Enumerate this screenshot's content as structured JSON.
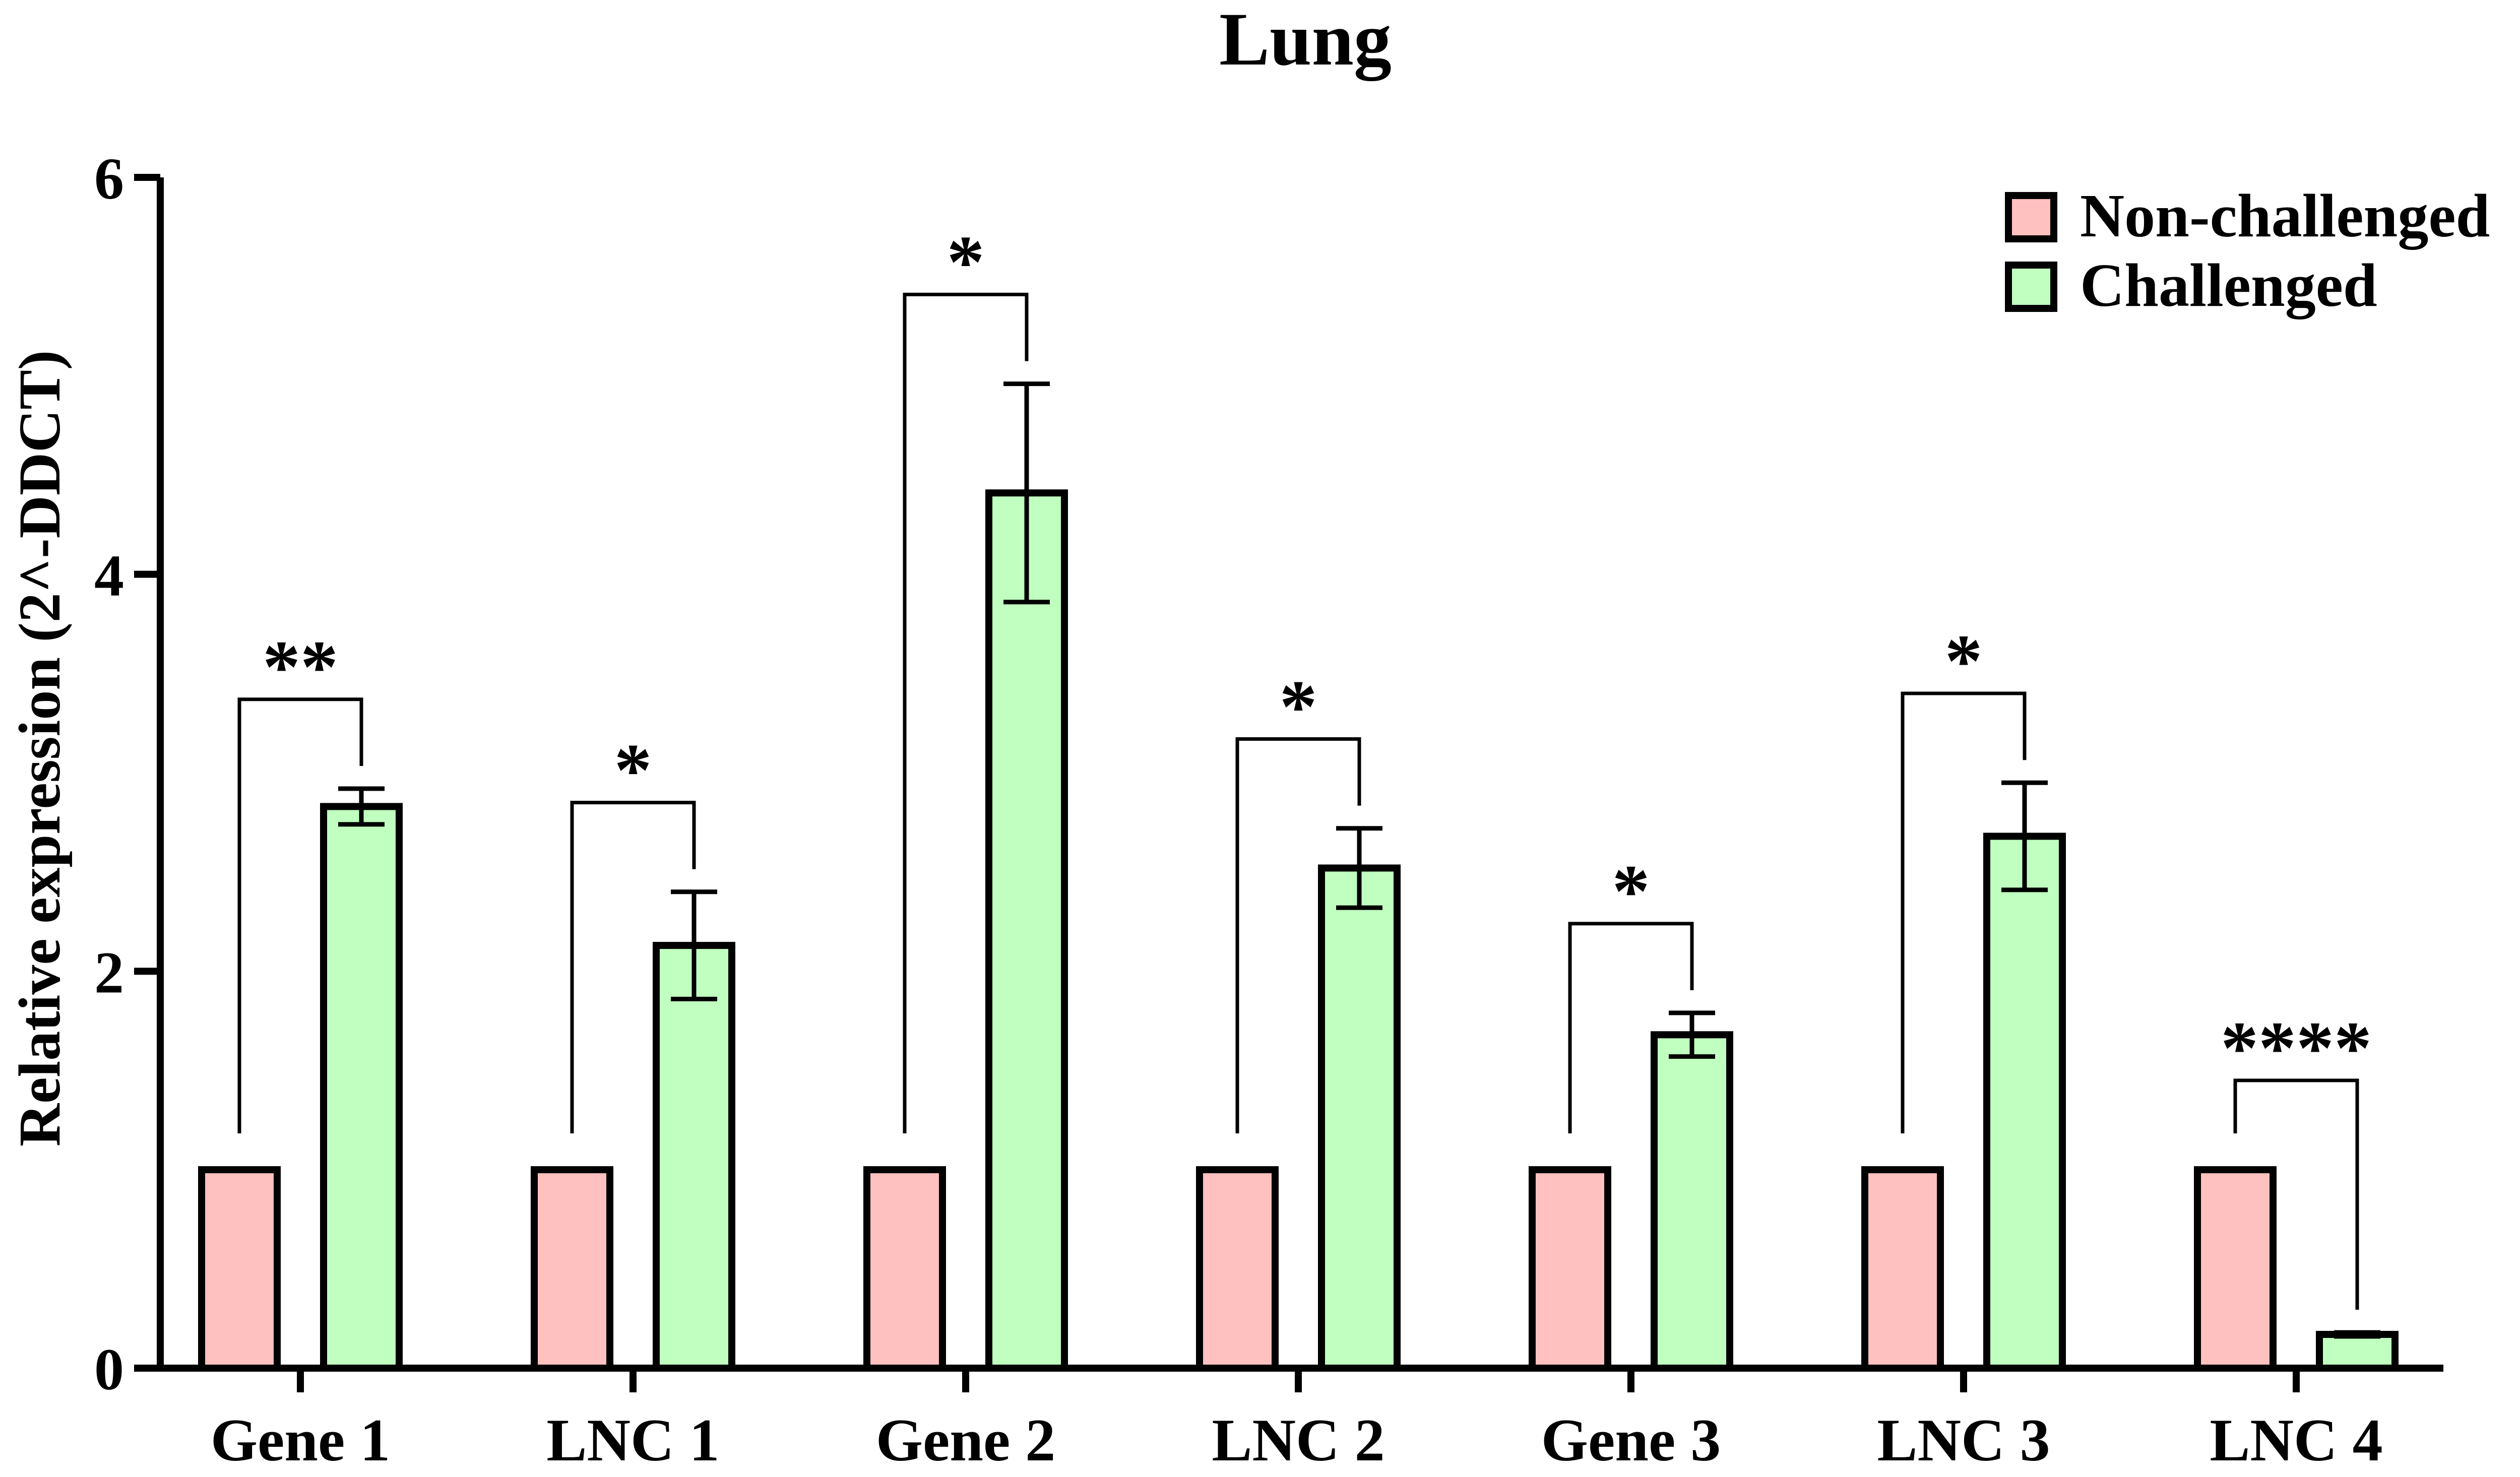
{
  "chart_data": {
    "type": "bar",
    "title": "Lung",
    "xlabel": "",
    "ylabel": "Relative expression (2^-DDCT)",
    "ylim": [
      0,
      6
    ],
    "yticks": [
      "0",
      "2",
      "4",
      "6"
    ],
    "categories": [
      "Gene 1",
      "LNC 1",
      "Gene 2",
      "LNC 2",
      "Gene 3",
      "LNC 3",
      "LNC 4"
    ],
    "series": [
      {
        "name": "Non-challenged",
        "color": "#FFC0C0",
        "values": [
          1,
          1,
          1,
          1,
          1,
          1,
          1
        ],
        "errors": [
          0,
          0,
          0,
          0,
          0,
          0,
          0
        ]
      },
      {
        "name": "Challenged",
        "color": "#C0FFC0",
        "values": [
          2.83,
          2.13,
          4.41,
          2.52,
          1.68,
          2.68,
          0.17
        ],
        "errors": [
          0.09,
          0.27,
          0.55,
          0.2,
          0.11,
          0.27,
          0.01
        ]
      }
    ],
    "significance": [
      "**",
      "*",
      "*",
      "*",
      "*",
      "*",
      "****"
    ],
    "grid": false,
    "legend_position": "top-right"
  }
}
